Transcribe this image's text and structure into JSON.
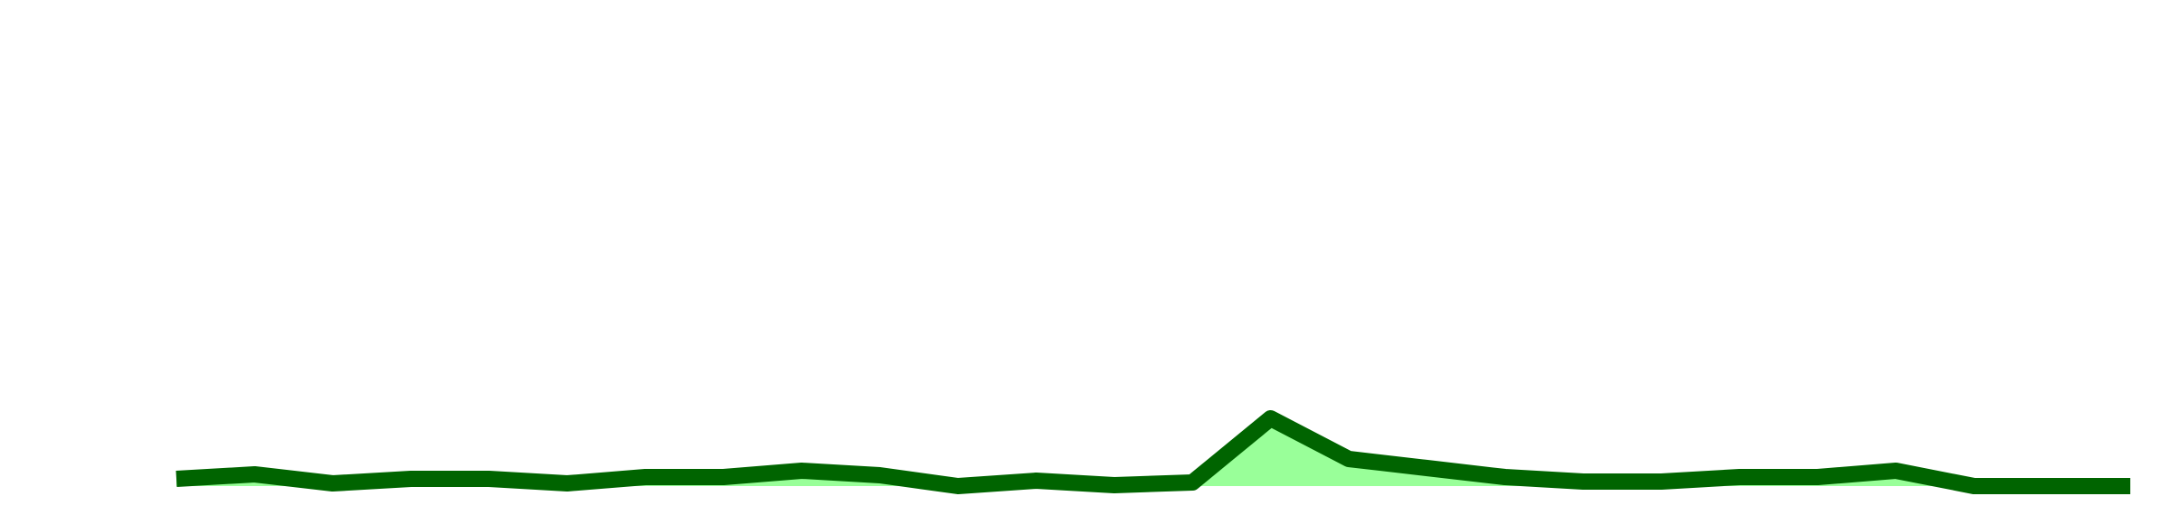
{
  "chart_data": {
    "type": "line",
    "title": "",
    "xlabel": "",
    "ylabel": "",
    "grid": false,
    "legend": "none",
    "x": [
      1,
      2,
      3,
      4,
      5,
      6,
      7,
      8,
      9,
      10,
      11,
      12,
      13,
      14,
      15,
      16,
      17,
      18,
      19,
      20,
      21,
      22,
      23,
      24,
      25,
      26
    ],
    "series": [
      {
        "values": [
          530,
          525,
          535,
          530,
          530,
          535,
          528,
          528,
          521,
          526,
          538,
          532,
          537,
          534,
          463,
          508,
          518,
          528,
          533,
          533,
          528,
          528,
          521,
          538,
          538,
          538
        ],
        "baseline": 538,
        "line_color": "#006400",
        "fill_color": "#99ff99"
      }
    ],
    "xlim": [
      1,
      26
    ],
    "ylim": [
      570,
      0
    ]
  }
}
